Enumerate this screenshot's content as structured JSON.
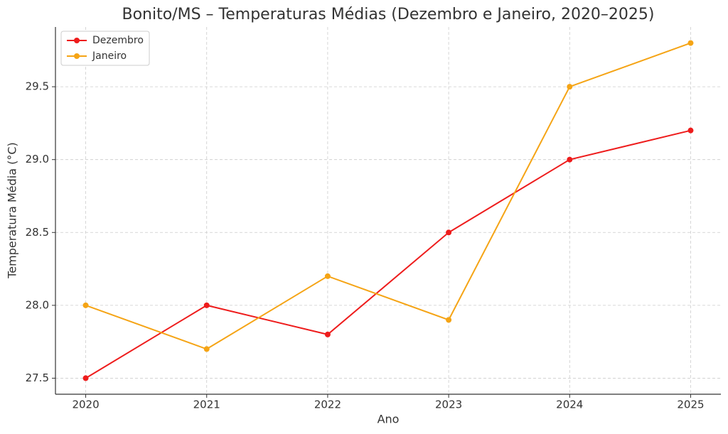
{
  "chart_data": {
    "type": "line",
    "title": "Bonito/MS – Temperaturas Médias (Dezembro e Janeiro, 2020–2025)",
    "x_label": "Ano",
    "y_label": "Temperatura Média (°C)",
    "x": [
      2020,
      2021,
      2022,
      2023,
      2024,
      2025
    ],
    "series": [
      {
        "name": "Dezembro",
        "color": "#ee1c1c",
        "values": [
          27.5,
          28.0,
          27.8,
          28.5,
          29.0,
          29.2
        ]
      },
      {
        "name": "Janeiro",
        "color": "#f5a415",
        "values": [
          28.0,
          27.7,
          28.2,
          27.9,
          29.5,
          29.8
        ]
      }
    ],
    "xlim": [
      2019.75,
      2025.25
    ],
    "xticks": [
      2020,
      2021,
      2022,
      2023,
      2024,
      2025
    ],
    "ylim": [
      27.39,
      29.91
    ],
    "yticks": [
      27.5,
      {
        "value": 28,
        "label": "28.0"
      },
      28.5,
      {
        "value": 29,
        "label": "29.0"
      },
      29.5
    ],
    "grid": true,
    "legend": "upper-left"
  }
}
